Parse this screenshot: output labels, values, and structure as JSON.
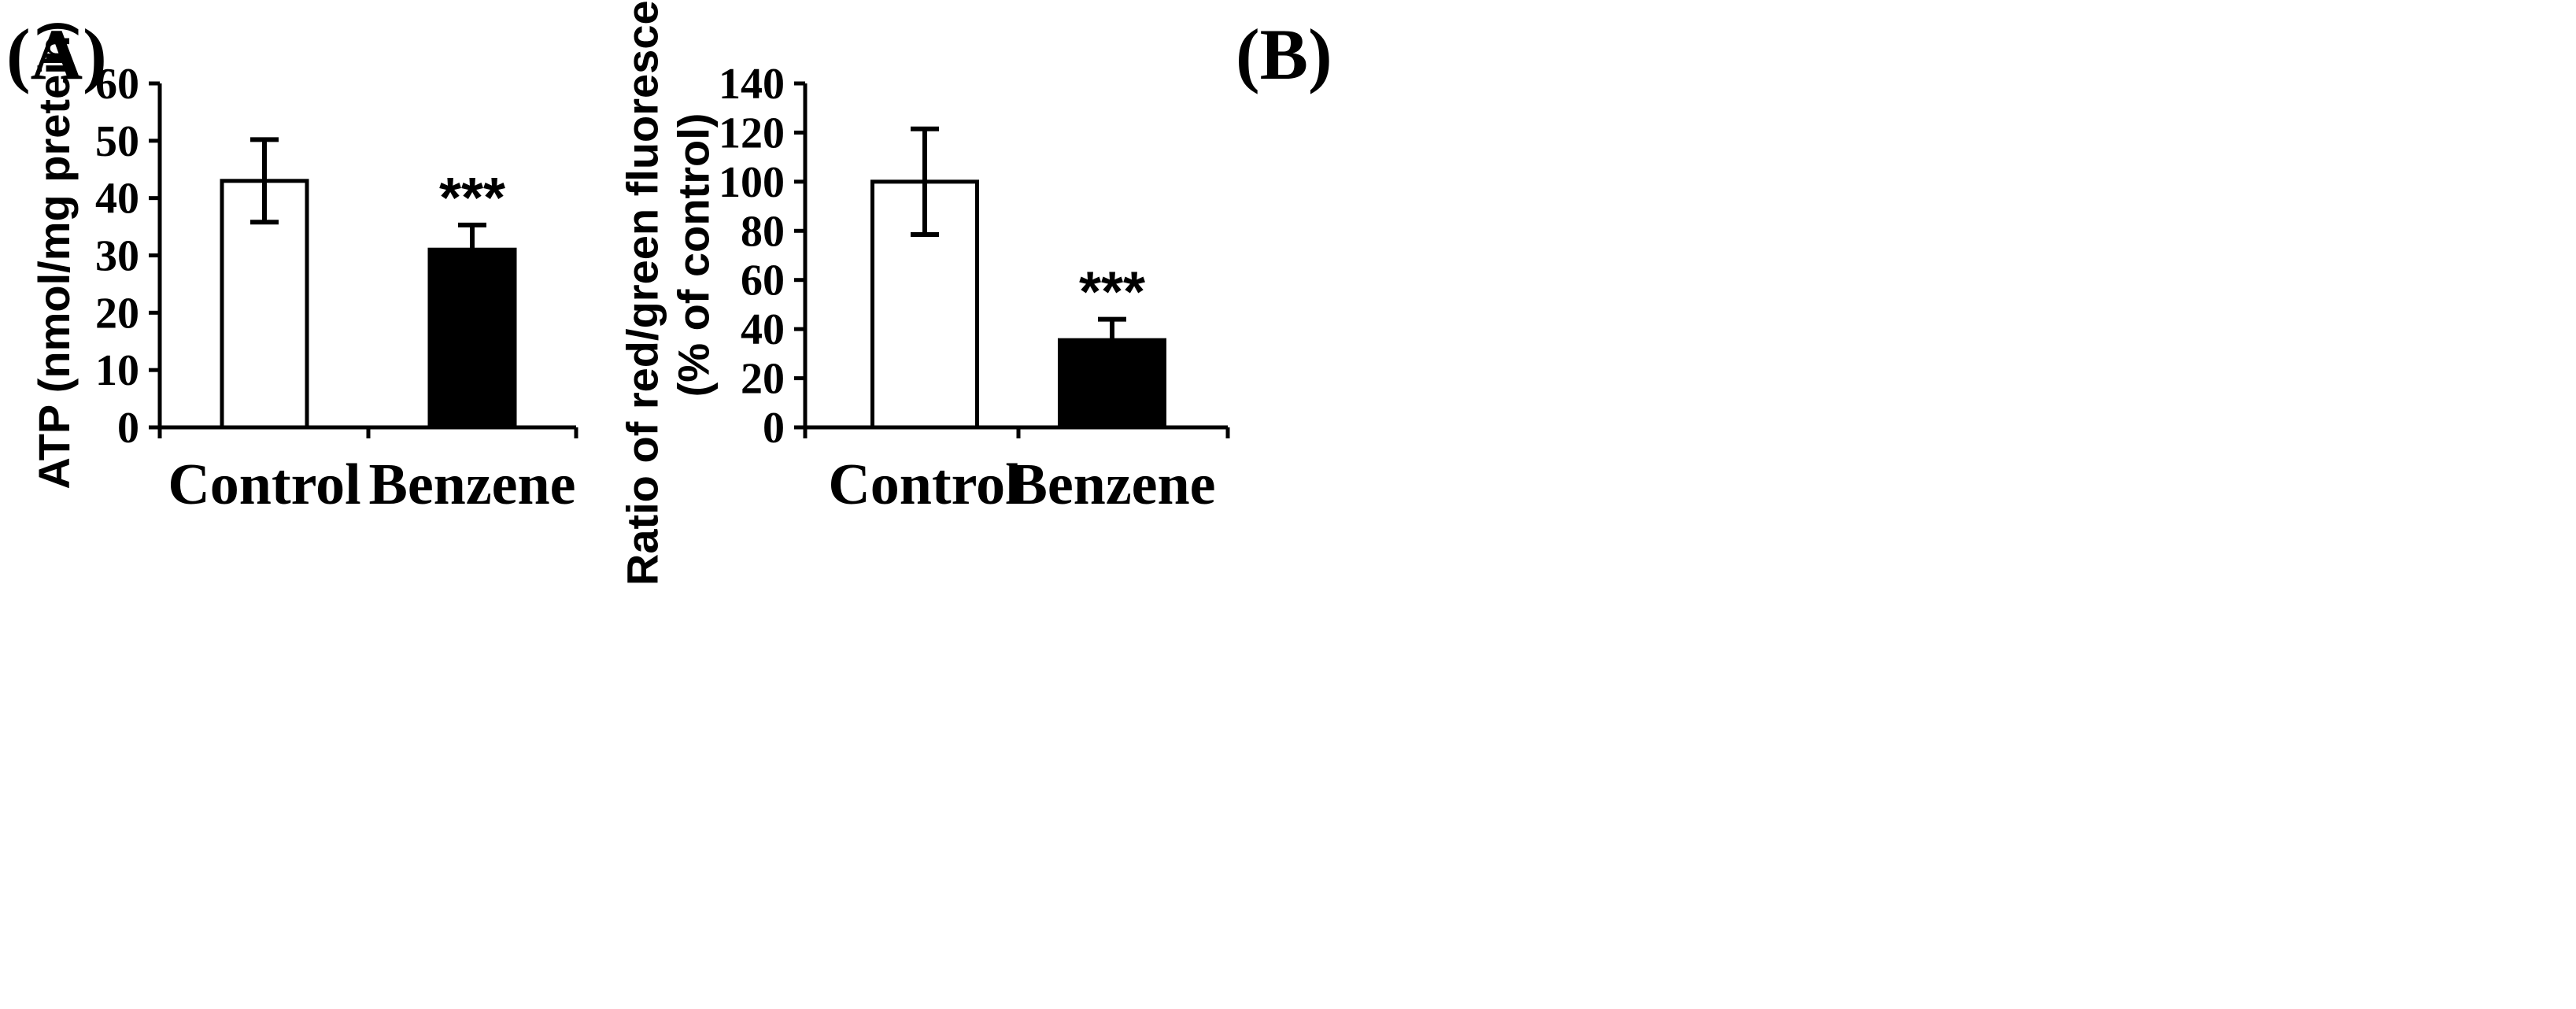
{
  "chart_data": [
    {
      "type": "bar",
      "panel_label": "(A)",
      "categories": [
        "Control",
        "Benzene"
      ],
      "values": [
        43,
        31
      ],
      "errors": [
        7.2,
        4.3
      ],
      "significance": [
        "",
        "***"
      ],
      "bar_colors": [
        "#ffffff",
        "#000000"
      ],
      "ylabel": "ATP (nmol/mg pretein)",
      "ylim": [
        0,
        60
      ],
      "yticks": [
        0,
        10,
        20,
        30,
        40,
        50,
        60
      ],
      "grid": false,
      "legend": "none"
    },
    {
      "type": "bar",
      "panel_label": "(B)",
      "categories": [
        "Control",
        "Benzene"
      ],
      "values": [
        100,
        35.5
      ],
      "errors": [
        21.5,
        8.5
      ],
      "significance": [
        "",
        "***"
      ],
      "bar_colors": [
        "#ffffff",
        "#000000"
      ],
      "ylabel_lines": [
        "Ratio of red/green fluorescence",
        "(% of control)"
      ],
      "ylim": [
        0,
        140
      ],
      "yticks": [
        0,
        20,
        40,
        60,
        80,
        100,
        120,
        140
      ],
      "grid": false,
      "legend": "none"
    }
  ]
}
